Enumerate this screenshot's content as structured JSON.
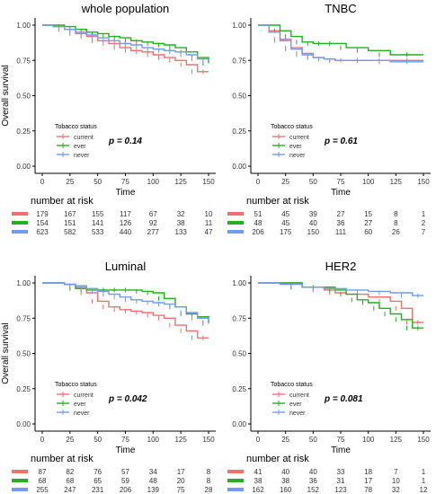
{
  "colors": {
    "current": "#f07070",
    "ever": "#20b020",
    "never": "#6f9cf2"
  },
  "chart_data": [
    {
      "type": "line",
      "title": "whole population",
      "xlabel": "Time",
      "ylabel": "Overall survival",
      "xlim": [
        0,
        150
      ],
      "ylim": [
        0,
        1
      ],
      "x_ticks": [
        "0",
        "25",
        "50",
        "75",
        "100",
        "125",
        "150"
      ],
      "y_ticks": [
        "0.00",
        "0.25",
        "0.50",
        "0.75",
        "1.00"
      ],
      "legend_title": "Tobacco status",
      "pvalue": "p = 0.14",
      "series": [
        {
          "name": "current",
          "x": [
            0,
            10,
            20,
            30,
            40,
            50,
            60,
            70,
            80,
            90,
            100,
            110,
            120,
            130,
            140,
            150
          ],
          "y": [
            1.0,
            0.99,
            0.97,
            0.94,
            0.92,
            0.89,
            0.87,
            0.84,
            0.82,
            0.81,
            0.79,
            0.77,
            0.75,
            0.72,
            0.67,
            0.67
          ]
        },
        {
          "name": "ever",
          "x": [
            0,
            10,
            20,
            30,
            40,
            50,
            60,
            70,
            80,
            90,
            100,
            110,
            120,
            130,
            140,
            150
          ],
          "y": [
            1.0,
            1.0,
            0.99,
            0.97,
            0.95,
            0.94,
            0.92,
            0.91,
            0.89,
            0.88,
            0.87,
            0.86,
            0.84,
            0.81,
            0.77,
            0.73
          ]
        },
        {
          "name": "never",
          "x": [
            0,
            10,
            20,
            30,
            40,
            50,
            60,
            70,
            80,
            90,
            100,
            110,
            120,
            130,
            140,
            150
          ],
          "y": [
            1.0,
            0.99,
            0.97,
            0.95,
            0.93,
            0.91,
            0.89,
            0.87,
            0.86,
            0.84,
            0.83,
            0.82,
            0.81,
            0.79,
            0.76,
            0.74
          ]
        }
      ],
      "risk_title": "number at risk",
      "risk": [
        {
          "name": "current",
          "values": [
            "179",
            "167",
            "155",
            "117",
            "67",
            "32",
            "10"
          ]
        },
        {
          "name": "ever",
          "values": [
            "154",
            "151",
            "141",
            "126",
            "92",
            "38",
            "11"
          ]
        },
        {
          "name": "never",
          "values": [
            "623",
            "582",
            "533",
            "440",
            "277",
            "133",
            "47"
          ]
        }
      ]
    },
    {
      "type": "line",
      "title": "TNBC",
      "xlabel": "Time",
      "ylabel": "",
      "xlim": [
        0,
        150
      ],
      "ylim": [
        0,
        1
      ],
      "x_ticks": [
        "0",
        "25",
        "50",
        "75",
        "100",
        "125",
        "150"
      ],
      "y_ticks": [
        "0.00",
        "0.25",
        "0.50",
        "0.75",
        "1.00"
      ],
      "legend_title": "Tobacco status",
      "pvalue": "p = 0.61",
      "series": [
        {
          "name": "current",
          "x": [
            0,
            10,
            20,
            30,
            40,
            50,
            60,
            70,
            80,
            100,
            120,
            150
          ],
          "y": [
            1.0,
            0.96,
            0.9,
            0.84,
            0.8,
            0.77,
            0.76,
            0.75,
            0.75,
            0.75,
            0.75,
            0.75
          ]
        },
        {
          "name": "ever",
          "x": [
            0,
            10,
            20,
            30,
            40,
            50,
            60,
            70,
            80,
            100,
            120,
            150
          ],
          "y": [
            1.0,
            1.0,
            0.96,
            0.92,
            0.88,
            0.87,
            0.87,
            0.87,
            0.84,
            0.82,
            0.79,
            0.79
          ]
        },
        {
          "name": "never",
          "x": [
            0,
            10,
            20,
            30,
            40,
            50,
            60,
            70,
            80,
            100,
            120,
            150
          ],
          "y": [
            1.0,
            0.95,
            0.89,
            0.83,
            0.79,
            0.77,
            0.76,
            0.75,
            0.75,
            0.75,
            0.74,
            0.74
          ]
        }
      ],
      "risk_title": "number at risk",
      "risk": [
        {
          "name": "current",
          "values": [
            "51",
            "45",
            "39",
            "27",
            "15",
            "8",
            "1"
          ]
        },
        {
          "name": "ever",
          "values": [
            "48",
            "45",
            "40",
            "36",
            "27",
            "8",
            "2"
          ]
        },
        {
          "name": "never",
          "values": [
            "206",
            "175",
            "150",
            "111",
            "60",
            "26",
            "7"
          ]
        }
      ]
    },
    {
      "type": "line",
      "title": "Luminal",
      "xlabel": "Time",
      "ylabel": "Overall survival",
      "xlim": [
        0,
        150
      ],
      "ylim": [
        0,
        1
      ],
      "x_ticks": [
        "0",
        "25",
        "50",
        "75",
        "100",
        "125",
        "150"
      ],
      "y_ticks": [
        "0.00",
        "0.25",
        "0.50",
        "0.75",
        "1.00"
      ],
      "legend_title": "Tobacco status",
      "pvalue": "p = 0.042",
      "series": [
        {
          "name": "current",
          "x": [
            0,
            20,
            30,
            40,
            50,
            60,
            70,
            80,
            90,
            100,
            110,
            120,
            130,
            140,
            150
          ],
          "y": [
            1.0,
            0.99,
            0.97,
            0.93,
            0.87,
            0.83,
            0.81,
            0.8,
            0.79,
            0.77,
            0.75,
            0.7,
            0.66,
            0.61,
            0.61
          ]
        },
        {
          "name": "ever",
          "x": [
            0,
            20,
            30,
            40,
            50,
            60,
            70,
            80,
            90,
            100,
            110,
            120,
            130,
            140,
            150
          ],
          "y": [
            1.0,
            0.99,
            0.96,
            0.95,
            0.95,
            0.95,
            0.95,
            0.95,
            0.94,
            0.93,
            0.89,
            0.83,
            0.78,
            0.76,
            0.72
          ]
        },
        {
          "name": "never",
          "x": [
            0,
            20,
            30,
            40,
            50,
            60,
            70,
            80,
            90,
            100,
            110,
            120,
            130,
            140,
            150
          ],
          "y": [
            1.0,
            0.99,
            0.98,
            0.96,
            0.94,
            0.92,
            0.9,
            0.88,
            0.87,
            0.86,
            0.85,
            0.83,
            0.79,
            0.75,
            0.71
          ]
        }
      ],
      "risk_title": "number at risk",
      "risk": [
        {
          "name": "current",
          "values": [
            "87",
            "82",
            "76",
            "57",
            "34",
            "17",
            "8"
          ]
        },
        {
          "name": "ever",
          "values": [
            "68",
            "68",
            "65",
            "59",
            "48",
            "20",
            "8"
          ]
        },
        {
          "name": "never",
          "values": [
            "255",
            "247",
            "231",
            "206",
            "139",
            "75",
            "28"
          ]
        }
      ]
    },
    {
      "type": "line",
      "title": "HER2",
      "xlabel": "Time",
      "ylabel": "",
      "xlim": [
        0,
        150
      ],
      "ylim": [
        0,
        1
      ],
      "x_ticks": [
        "0",
        "25",
        "50",
        "75",
        "100",
        "125",
        "150"
      ],
      "y_ticks": [
        "0.00",
        "0.25",
        "0.50",
        "0.75",
        "1.00"
      ],
      "legend_title": "Tobacco status",
      "pvalue": "p = 0.081",
      "series": [
        {
          "name": "current",
          "x": [
            0,
            20,
            40,
            60,
            70,
            80,
            100,
            120,
            130,
            140,
            150
          ],
          "y": [
            1.0,
            1.0,
            0.97,
            0.95,
            0.93,
            0.92,
            0.9,
            0.87,
            0.82,
            0.72,
            0.72
          ]
        },
        {
          "name": "ever",
          "x": [
            0,
            20,
            40,
            60,
            70,
            80,
            90,
            100,
            110,
            120,
            130,
            140,
            150
          ],
          "y": [
            1.0,
            1.0,
            0.97,
            0.97,
            0.95,
            0.92,
            0.88,
            0.86,
            0.82,
            0.78,
            0.74,
            0.68,
            0.68
          ]
        },
        {
          "name": "never",
          "x": [
            0,
            20,
            40,
            60,
            80,
            100,
            120,
            140,
            150
          ],
          "y": [
            1.0,
            0.99,
            0.97,
            0.96,
            0.95,
            0.94,
            0.93,
            0.91,
            0.91
          ]
        }
      ],
      "risk_title": "number at risk",
      "risk": [
        {
          "name": "current",
          "values": [
            "41",
            "40",
            "40",
            "33",
            "18",
            "7",
            "1"
          ]
        },
        {
          "name": "ever",
          "values": [
            "38",
            "38",
            "36",
            "31",
            "17",
            "10",
            "1"
          ]
        },
        {
          "name": "never",
          "values": [
            "162",
            "160",
            "152",
            "123",
            "78",
            "32",
            "12"
          ]
        }
      ]
    }
  ]
}
